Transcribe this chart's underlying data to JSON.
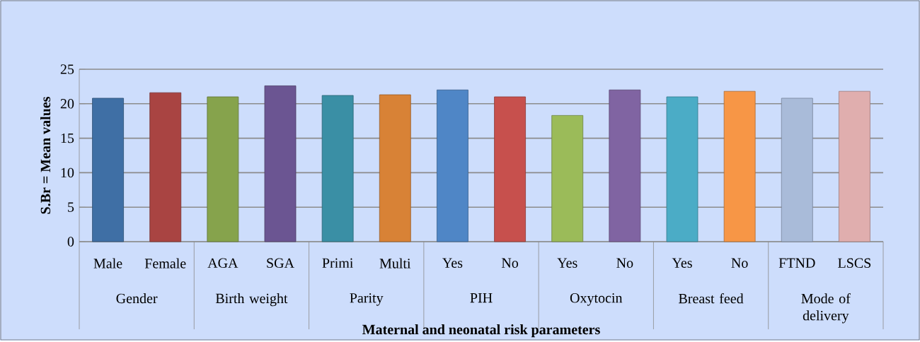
{
  "chart_data": {
    "type": "bar",
    "xlabel": "Maternal and neonatal risk parameters",
    "ylabel": "S.Br = Mean values",
    "categories": [
      "Male",
      "Female",
      "AGA",
      "SGA",
      "Primi",
      "Multi",
      "Yes",
      "No",
      "Yes",
      "No",
      "Yes",
      "No",
      "FTND",
      "LSCS"
    ],
    "values": [
      20.8,
      21.6,
      21.0,
      22.6,
      21.2,
      21.3,
      22.0,
      21.0,
      18.3,
      22.0,
      21.0,
      21.8,
      20.8,
      21.8
    ],
    "colors": [
      "#3f6fa5",
      "#a94442",
      "#86a34c",
      "#6b5592",
      "#3a8fa5",
      "#d88236",
      "#4f86c6",
      "#c7504d",
      "#9bbb59",
      "#8064a2",
      "#4bacc6",
      "#f79646",
      "#a9bbd9",
      "#e0aeae"
    ],
    "annotations": [
      "Gender",
      "Birth weight",
      "Parity",
      "PIH",
      "Oxytocin",
      "Breast feed",
      "Mode of delivery"
    ],
    "ylim": [
      0,
      25
    ],
    "yticks": [
      0,
      5,
      10,
      15,
      20,
      25
    ],
    "grid": "y"
  }
}
